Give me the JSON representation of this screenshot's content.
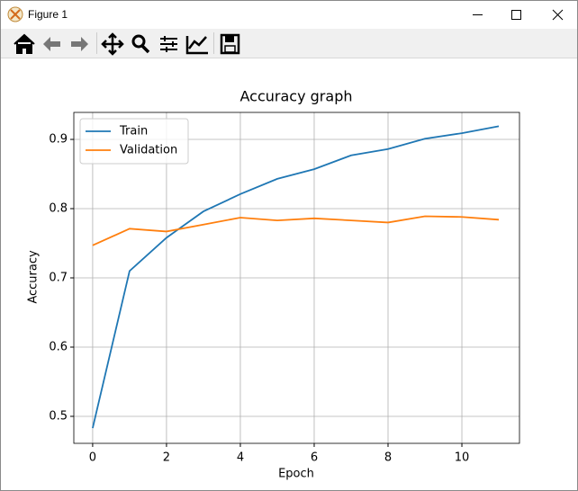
{
  "window": {
    "title": "Figure 1"
  },
  "chart_data": {
    "type": "line",
    "title": "Accuracy graph",
    "x_label": "Epoch",
    "y_label": "Accuracy",
    "x": [
      0,
      1,
      2,
      3,
      4,
      5,
      6,
      7,
      8,
      9,
      10,
      11
    ],
    "series": [
      {
        "name": "Train",
        "color": "#1f77b4",
        "values": [
          0.483,
          0.71,
          0.758,
          0.796,
          0.821,
          0.843,
          0.857,
          0.877,
          0.886,
          0.901,
          0.909,
          0.919
        ]
      },
      {
        "name": "Validation",
        "color": "#ff7f0e",
        "values": [
          0.747,
          0.771,
          0.767,
          0.777,
          0.787,
          0.783,
          0.786,
          0.783,
          0.78,
          0.789,
          0.788,
          0.784
        ]
      }
    ],
    "xlim": [
      -0.51,
      11.56
    ],
    "ylim": [
      0.461,
      0.939
    ],
    "xticks": [
      0,
      2,
      4,
      6,
      8,
      10
    ],
    "yticks": [
      0.5,
      0.6,
      0.7,
      0.8,
      0.9
    ],
    "grid": true,
    "legend": "upper-left"
  }
}
